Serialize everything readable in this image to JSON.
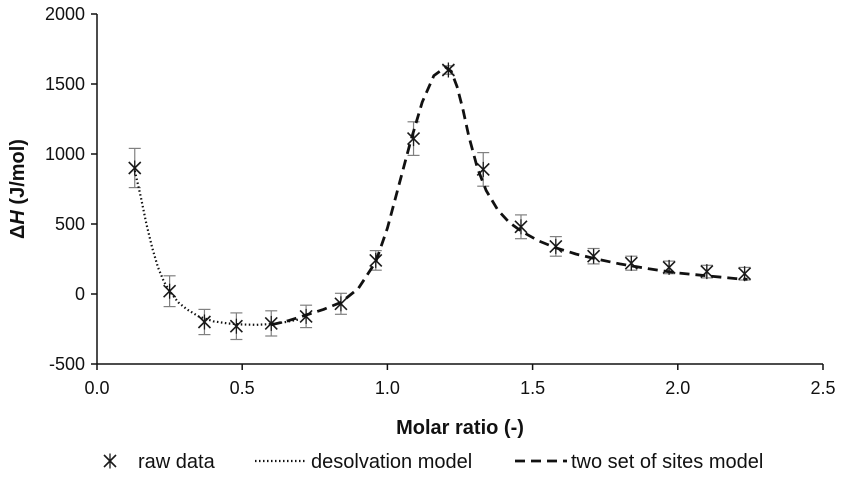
{
  "chart_data": {
    "type": "scatter",
    "title": "",
    "xlabel": "Molar ratio (-)",
    "ylabel_prefix": "Δ",
    "ylabel_var": "H",
    "ylabel_unit": " (J/mol)",
    "xlim": [
      0.0,
      2.5
    ],
    "ylim": [
      -500,
      2000
    ],
    "xticks": [
      "0.0",
      "0.5",
      "1.0",
      "1.5",
      "2.0",
      "2.5"
    ],
    "yticks": [
      "-500",
      "0",
      "500",
      "1000",
      "1500",
      "2000"
    ],
    "grid": false,
    "legend_position": "bottom",
    "colors": {
      "marker": "#1a1a1a",
      "errorbar": "#808080",
      "line": "#111111",
      "axis": "#111111"
    },
    "series": [
      {
        "name": "raw data",
        "style": "markers",
        "marker": "x-star",
        "x": [
          0.13,
          0.25,
          0.37,
          0.48,
          0.6,
          0.72,
          0.84,
          0.96,
          1.09,
          1.21,
          1.33,
          1.46,
          1.58,
          1.71,
          1.84,
          1.97,
          2.1,
          2.23
        ],
        "y": [
          900,
          20,
          -200,
          -230,
          -210,
          -160,
          -70,
          240,
          1110,
          1600,
          890,
          480,
          340,
          270,
          220,
          190,
          160,
          145
        ],
        "yerr": [
          140,
          110,
          90,
          95,
          90,
          80,
          75,
          70,
          120,
          30,
          120,
          85,
          70,
          55,
          50,
          45,
          45,
          45
        ]
      },
      {
        "name": "desolvation model",
        "style": "dotted",
        "x": [
          0.13,
          0.15,
          0.17,
          0.19,
          0.21,
          0.23,
          0.25,
          0.28,
          0.31,
          0.35,
          0.4,
          0.45,
          0.5,
          0.55,
          0.6,
          0.65,
          0.7
        ],
        "y": [
          880,
          700,
          500,
          330,
          190,
          90,
          20,
          -60,
          -110,
          -160,
          -195,
          -210,
          -218,
          -220,
          -215,
          -200,
          -180
        ]
      },
      {
        "name": "two set of sites model",
        "style": "dashed",
        "x": [
          0.6,
          0.66,
          0.72,
          0.78,
          0.84,
          0.9,
          0.96,
          1.0,
          1.04,
          1.08,
          1.12,
          1.16,
          1.2,
          1.22,
          1.24,
          1.26,
          1.28,
          1.31,
          1.34,
          1.38,
          1.42,
          1.46,
          1.52,
          1.58,
          1.65,
          1.72,
          1.8,
          1.9,
          2.0,
          2.1,
          2.2,
          2.24
        ],
        "y": [
          -220,
          -190,
          -150,
          -110,
          -60,
          40,
          230,
          470,
          780,
          1090,
          1370,
          1560,
          1620,
          1590,
          1480,
          1320,
          1130,
          900,
          740,
          600,
          510,
          450,
          380,
          330,
          285,
          250,
          215,
          180,
          150,
          130,
          110,
          105
        ]
      }
    ]
  }
}
